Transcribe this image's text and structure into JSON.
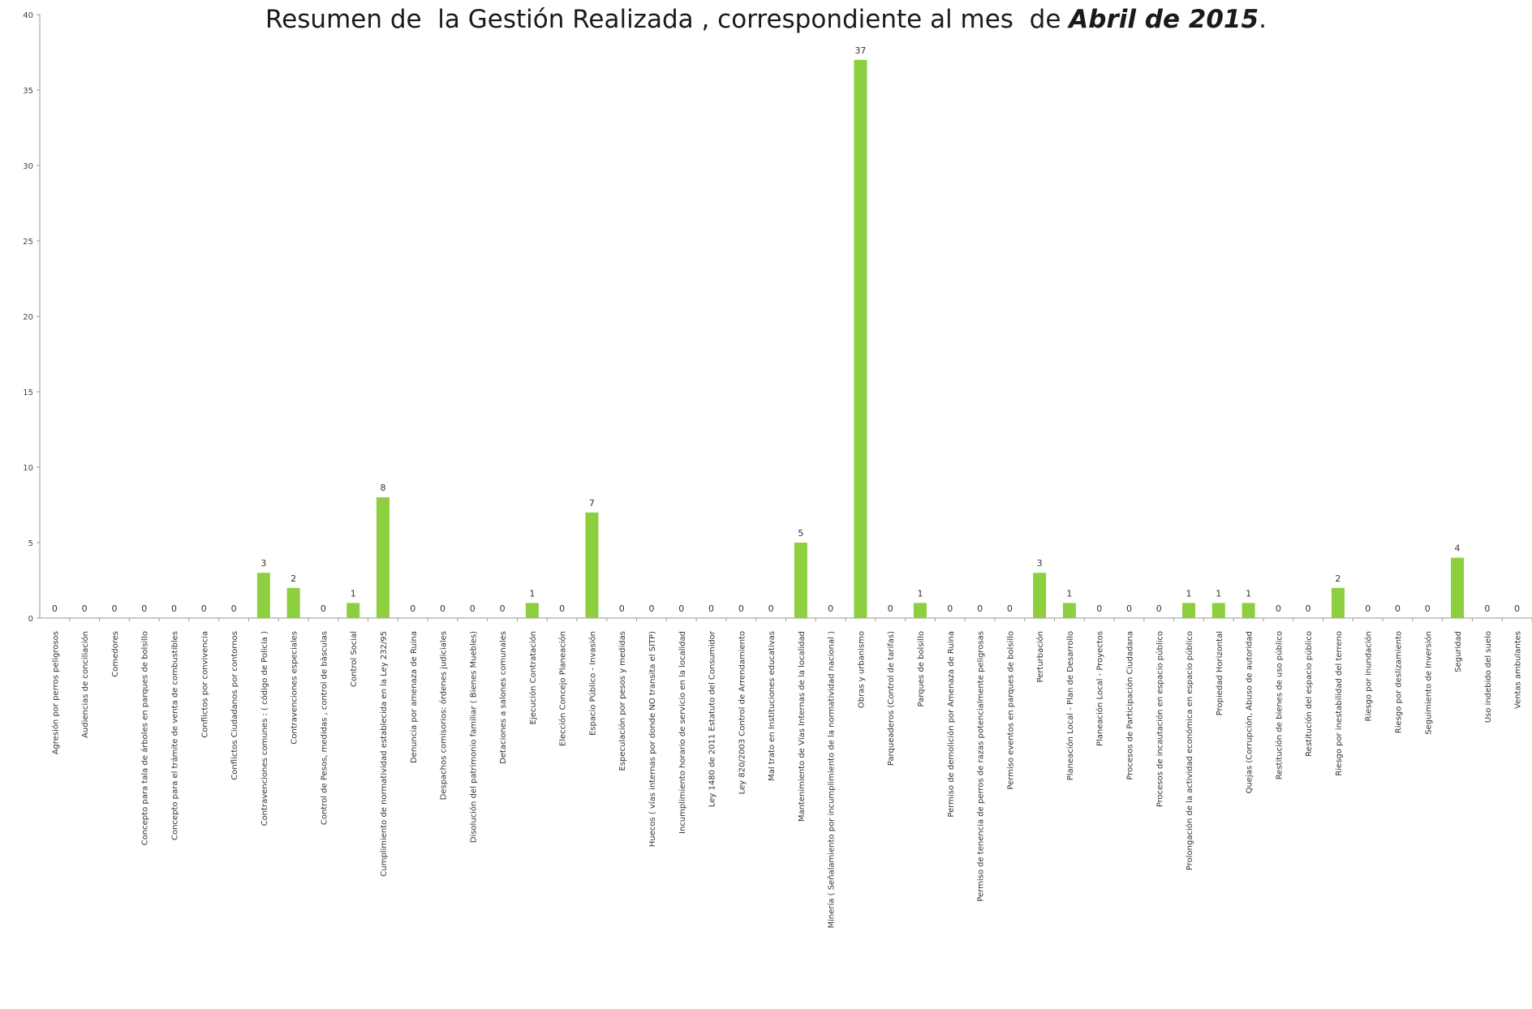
{
  "chart_data": {
    "type": "bar",
    "title_main": "Resumen de  la Gestión Realizada , correspondiente al mes  de ",
    "title_emph": "Abril de 2015",
    "title_end": ".",
    "ylim": [
      0,
      40
    ],
    "yticks": [
      "0",
      "5",
      "10",
      "15",
      "20",
      "25",
      "30",
      "35",
      "40"
    ],
    "grid": false,
    "bar_color": "#8dcf3f",
    "categories": [
      "Agresión por perros peligrosos",
      "Audiencias de conciliación",
      "Comedores",
      "Concepto para  tala de árboles en parques de bolsillo",
      "Concepto para el trámite de venta de combustibles",
      "Conflictos  por convivencia",
      "Conflictos Ciudadanos  por contornos",
      "Contravenciones  comunes : ( código de Policía )",
      "Contravenciones especiales",
      "Control de Pesos, medidas , control de bàsculas",
      "Control Social",
      "Cumplimiento de normatividad establecida en  la Ley 232/95",
      "Denuncia por amenaza de Ruina",
      "Despachos comisorios:  órdenes judiciales",
      "Disolución del patrimonio familiar ( Bienes Muebles)",
      "Detaciones a salones comunales",
      "Ejecución Contratación",
      "Elección Concejo Planeación",
      "Espacio Público - Invasión",
      "Especulación por pesos y medidas",
      "Huecos ( vías internas por donde NO transita el SITP)",
      "Incumplimiento horario de servicio en la localidad",
      "Ley 1480 de 2011 Estatuto del Consumidor",
      "Ley 820/2003 Control de Arrendamiento",
      "Mal trato en  Instituciones educativas",
      "Mantenimiento de  Vías Internas de la localidad",
      "Minería  ( Señalamiento por incumplimiento de la normatividad nacional )",
      "Obras y urbanismo",
      "Parqueaderos (Control de tarifas)",
      "Parques de bolsillo",
      "Permiso de demolición por Amenaza de Ruina",
      "Permiso de tenencia de perros  de razas potencialmente peligrosas",
      "Permiso eventos en parques de bolsillo",
      "Perturbación",
      "Planeación Local - Plan de Desarrollo",
      "Planeación Local - Proyectos",
      "Procesos de  Participación Ciudadana",
      "Procesos de incautación en espacio público",
      "Prolongación de  la actividad económica en espacio público",
      "Propiedad Horizontal",
      "Quejas (Corrupción, Abuso de autoridad",
      "Restitución de bienes de uso público",
      "Restitución del espacio público",
      "Riesgo por inestabilidad del terreno",
      "Riesgo por inundación",
      "Riesgo por deslizamiento",
      "Seguimiento de Inversión",
      "Seguridad",
      "Uso indebido del suelo",
      "Ventas ambulantes"
    ],
    "values": [
      0,
      0,
      0,
      0,
      0,
      0,
      0,
      3,
      2,
      0,
      1,
      8,
      0,
      0,
      0,
      0,
      1,
      0,
      7,
      0,
      0,
      0,
      0,
      0,
      0,
      5,
      0,
      37,
      0,
      1,
      0,
      0,
      0,
      3,
      1,
      0,
      0,
      0,
      1,
      1,
      1,
      0,
      0,
      2,
      0,
      0,
      0,
      4,
      0,
      0
    ],
    "data_labels": [
      "0",
      "0",
      "0",
      "0",
      "0",
      "0",
      "0",
      "3",
      "2",
      "0",
      "1",
      "8",
      "0",
      "0",
      "0",
      "0",
      "1",
      "0",
      "7",
      "0",
      "0",
      "0",
      "0",
      "0",
      "0",
      "5",
      "0",
      "37",
      "0",
      "1",
      "0",
      "0",
      "0",
      "3",
      "1",
      "0",
      "0",
      "0",
      "1",
      "1",
      "1",
      "0",
      "0",
      "2",
      "0",
      "0",
      "0",
      "4",
      "0",
      "0"
    ]
  }
}
